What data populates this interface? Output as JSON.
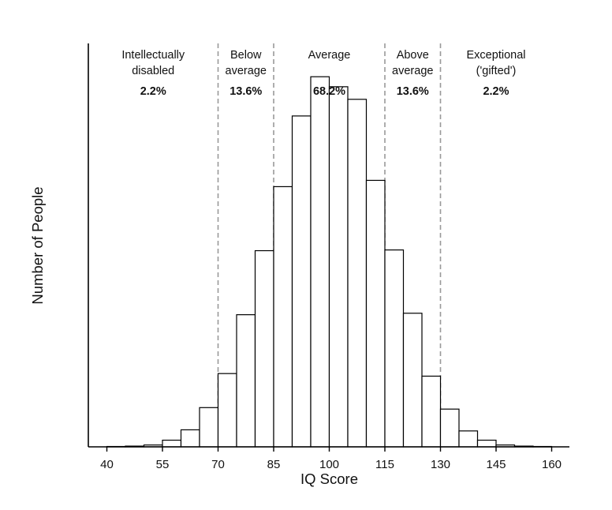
{
  "chart_data": {
    "type": "bar",
    "title": "",
    "xlabel": "IQ Score",
    "ylabel": "Number of People",
    "x_ticks": [
      40,
      55,
      70,
      85,
      100,
      115,
      130,
      145,
      160
    ],
    "xlim": [
      35,
      162.5
    ],
    "bin_width": 5,
    "bins": [
      {
        "start": 40,
        "end": 45,
        "value": 0.1
      },
      {
        "start": 45,
        "end": 50,
        "value": 0.2
      },
      {
        "start": 50,
        "end": 55,
        "value": 0.5
      },
      {
        "start": 55,
        "end": 60,
        "value": 1.8
      },
      {
        "start": 60,
        "end": 65,
        "value": 4.6
      },
      {
        "start": 65,
        "end": 70,
        "value": 10.6
      },
      {
        "start": 70,
        "end": 75,
        "value": 19.8
      },
      {
        "start": 75,
        "end": 80,
        "value": 35.7
      },
      {
        "start": 80,
        "end": 85,
        "value": 53.0
      },
      {
        "start": 85,
        "end": 90,
        "value": 70.3
      },
      {
        "start": 90,
        "end": 95,
        "value": 89.4
      },
      {
        "start": 95,
        "end": 100,
        "value": 100.0
      },
      {
        "start": 100,
        "end": 105,
        "value": 97.3
      },
      {
        "start": 105,
        "end": 110,
        "value": 93.9
      },
      {
        "start": 110,
        "end": 115,
        "value": 72.0
      },
      {
        "start": 115,
        "end": 120,
        "value": 53.2
      },
      {
        "start": 120,
        "end": 125,
        "value": 36.1
      },
      {
        "start": 125,
        "end": 130,
        "value": 19.1
      },
      {
        "start": 130,
        "end": 135,
        "value": 10.2
      },
      {
        "start": 135,
        "end": 140,
        "value": 4.3
      },
      {
        "start": 140,
        "end": 145,
        "value": 1.8
      },
      {
        "start": 145,
        "end": 150,
        "value": 0.5
      },
      {
        "start": 150,
        "end": 155,
        "value": 0.2
      },
      {
        "start": 155,
        "end": 160,
        "value": 0.1
      }
    ],
    "ylim": [
      0,
      109
    ],
    "y_ticks_shown": false,
    "grid": false,
    "cutoffs": [
      70,
      85,
      115,
      130
    ],
    "regions": [
      {
        "lines": [
          "Intellectually",
          "disabled"
        ],
        "percent": "2.2%",
        "center": 52.5
      },
      {
        "lines": [
          "Below",
          "average"
        ],
        "percent": "13.6%",
        "center": 77.5
      },
      {
        "lines": [
          "Average"
        ],
        "percent": "68.2%",
        "center": 100
      },
      {
        "lines": [
          "Above",
          "average"
        ],
        "percent": "13.6%",
        "center": 122.5
      },
      {
        "lines": [
          "Exceptional",
          "('gifted')"
        ],
        "percent": "2.2%",
        "center": 145
      }
    ],
    "colors": {
      "bar_fill": "#ffffff",
      "bar_stroke": "#000000",
      "axis": "#000000",
      "cutoff_line": "#999999",
      "text": "#111111"
    }
  }
}
